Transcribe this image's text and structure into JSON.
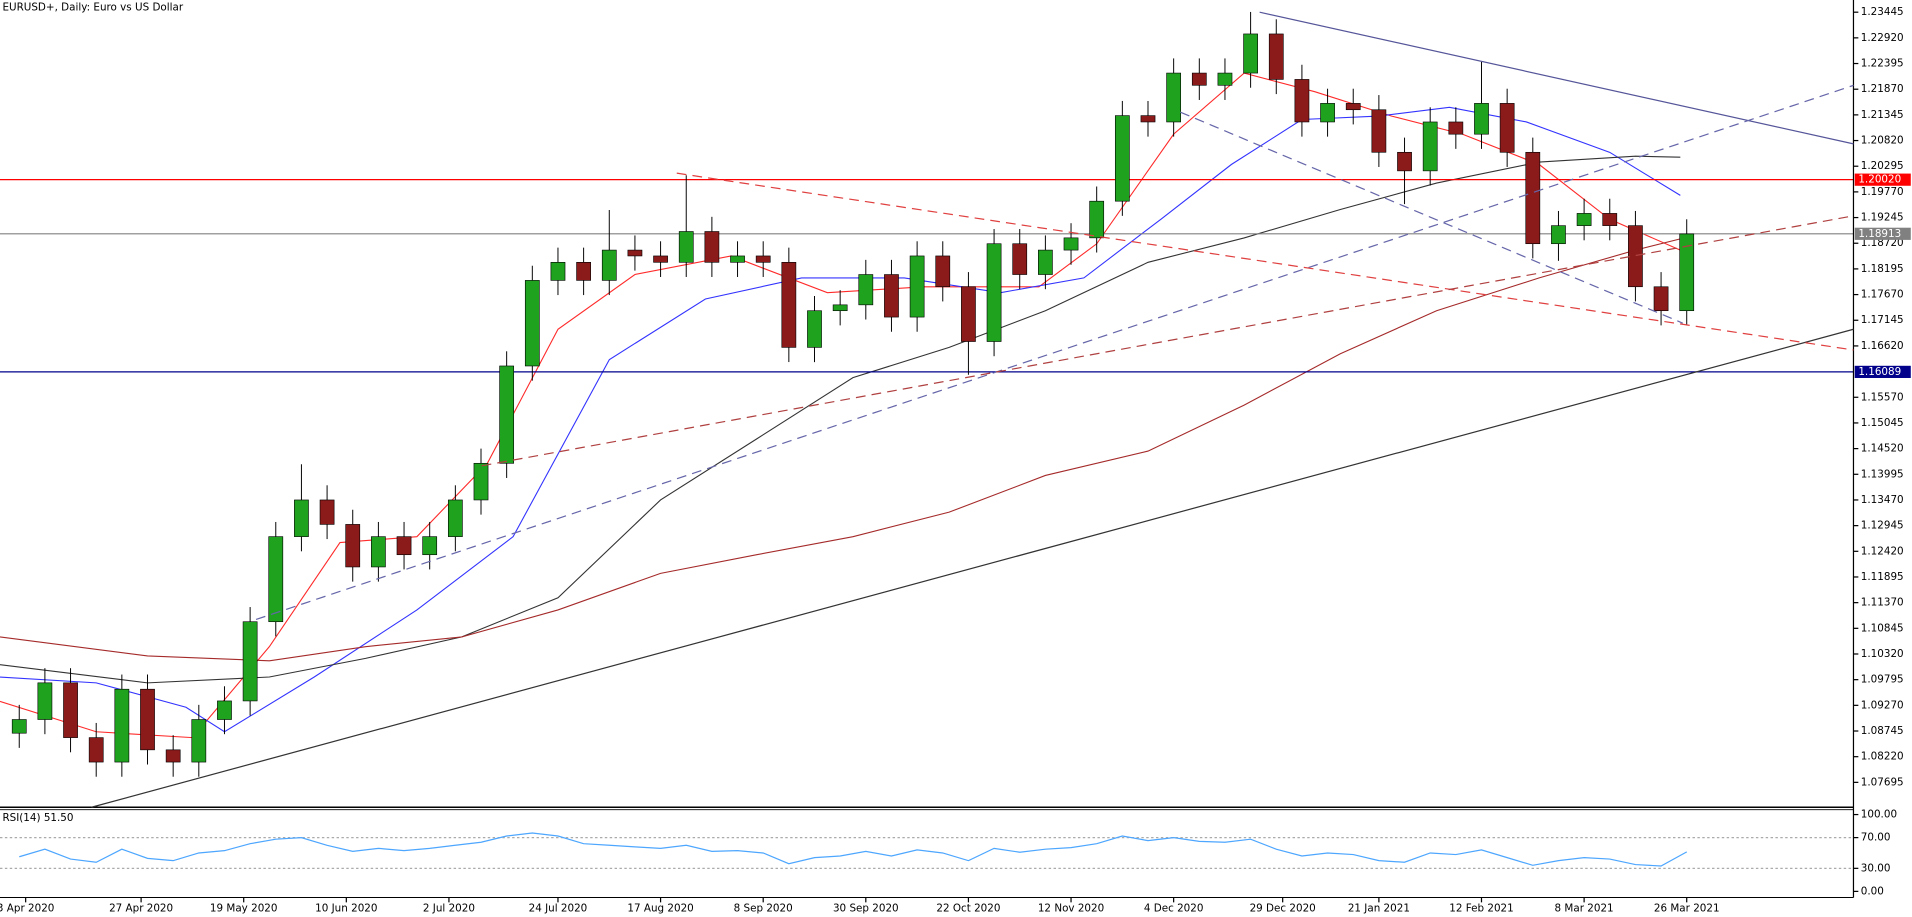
{
  "chart_data": {
    "type": "candlestick",
    "title": "EURUSD+, Daily:  Euro vs US Dollar",
    "bull_color": "#1fa31f",
    "bear_color": "#8b1a1a",
    "xlim": [
      0,
      289
    ],
    "ylim": [
      1.07186,
      1.23694
    ],
    "xticks": [
      {
        "value": 4,
        "label": "3 Apr 2020"
      },
      {
        "value": 22,
        "label": "27 Apr 2020"
      },
      {
        "value": 38,
        "label": "19 May 2020"
      },
      {
        "value": 54,
        "label": "10 Jun 2020"
      },
      {
        "value": 70,
        "label": "2 Jul 2020"
      },
      {
        "value": 87,
        "label": "24 Jul 2020"
      },
      {
        "value": 103,
        "label": "17 Aug 2020"
      },
      {
        "value": 119,
        "label": "8 Sep 2020"
      },
      {
        "value": 135,
        "label": "30 Sep 2020"
      },
      {
        "value": 151,
        "label": "22 Oct 2020"
      },
      {
        "value": 167,
        "label": "12 Nov 2020"
      },
      {
        "value": 183,
        "label": "4 Dec 2020"
      },
      {
        "value": 200,
        "label": "29 Dec 2020"
      },
      {
        "value": 215,
        "label": "21 Jan 2021"
      },
      {
        "value": 231,
        "label": "12 Feb 2021"
      },
      {
        "value": 247,
        "label": "8 Mar 2021"
      },
      {
        "value": 263,
        "label": "26 Mar 2021"
      }
    ],
    "yticks": [
      1.23445,
      {
        "value": 1.2292,
        "label": "1.22920"
      },
      1.22395,
      {
        "value": 1.2187,
        "label": "1.21870"
      },
      1.21345,
      {
        "value": 1.2082,
        "label": "1.20820"
      },
      1.20295,
      {
        "value": 1.1977,
        "label": "1.19770"
      },
      1.19245,
      {
        "value": 1.1872,
        "label": "1.18720"
      },
      1.18195,
      {
        "value": 1.1767,
        "label": "1.17670"
      },
      1.17145,
      {
        "value": 1.1662,
        "label": "1.16620"
      },
      {
        "value": 1.1557,
        "label": "1.15570"
      },
      1.15045,
      {
        "value": 1.1452,
        "label": "1.14520"
      },
      1.13995,
      {
        "value": 1.1347,
        "label": "1.13470"
      },
      1.12945,
      {
        "value": 1.1242,
        "label": "1.12420"
      },
      1.11895,
      {
        "value": 1.1137,
        "label": "1.11370"
      },
      1.10845,
      {
        "value": 1.1032,
        "label": "1.10320"
      },
      1.09795,
      {
        "value": 1.0927,
        "label": "1.09270"
      },
      1.08745,
      {
        "value": 1.0822,
        "label": "1.08220"
      },
      1.07695
    ],
    "x": [
      3,
      7,
      11,
      15,
      19,
      23,
      27,
      31,
      35,
      39,
      43,
      47,
      51,
      55,
      59,
      63,
      67,
      71,
      75,
      79,
      83,
      87,
      91,
      95,
      99,
      103,
      107,
      111,
      115,
      119,
      123,
      127,
      131,
      135,
      139,
      143,
      147,
      151,
      155,
      159,
      163,
      167,
      171,
      175,
      179,
      183,
      187,
      191,
      195,
      199,
      203,
      207,
      211,
      215,
      219,
      223,
      227,
      231,
      235,
      239,
      243,
      247,
      251,
      255,
      259,
      263
    ],
    "open": [
      1.087,
      1.0898,
      1.0973,
      1.0861,
      1.0811,
      1.096,
      1.0836,
      1.0811,
      1.0898,
      1.0936,
      1.1098,
      1.1272,
      1.1347,
      1.1297,
      1.121,
      1.1272,
      1.1235,
      1.1272,
      1.1347,
      1.1422,
      1.1621,
      1.1796,
      1.1833,
      1.1796,
      1.1858,
      1.1846,
      1.1833,
      1.1896,
      1.1833,
      1.1846,
      1.1833,
      1.1659,
      1.1734,
      1.1746,
      1.1808,
      1.1721,
      1.1846,
      1.1783,
      1.1671,
      1.1871,
      1.1808,
      1.1858,
      1.1883,
      1.1958,
      1.2133,
      1.212,
      1.222,
      1.2195,
      1.222,
      1.23,
      1.2207,
      1.212,
      1.2158,
      1.2145,
      1.2058,
      1.202,
      1.212,
      1.2095,
      1.2158,
      1.2058,
      1.1871,
      1.1908,
      1.1933,
      1.1908,
      1.1783,
      1.1734
    ],
    "high": [
      1.0928,
      1.1003,
      1.1003,
      1.0891,
      1.099,
      1.099,
      1.0866,
      1.0928,
      1.0966,
      1.1128,
      1.1302,
      1.142,
      1.1377,
      1.1327,
      1.1302,
      1.1302,
      1.1302,
      1.1377,
      1.1452,
      1.1651,
      1.1826,
      1.1863,
      1.1863,
      1.194,
      1.1888,
      1.1876,
      1.2011,
      1.1926,
      1.1876,
      1.1876,
      1.1863,
      1.1764,
      1.1776,
      1.1838,
      1.1838,
      1.1876,
      1.1876,
      1.1813,
      1.1901,
      1.1901,
      1.1888,
      1.1913,
      1.1988,
      1.2163,
      1.2163,
      1.225,
      1.225,
      1.225,
      1.2345,
      1.233,
      1.2237,
      1.2188,
      1.2188,
      1.2175,
      1.2088,
      1.215,
      1.215,
      1.2243,
      1.2188,
      1.2088,
      1.1938,
      1.1963,
      1.1963,
      1.1938,
      1.1813,
      1.1921
    ],
    "low": [
      1.084,
      1.0868,
      1.0831,
      1.0781,
      1.0781,
      1.0806,
      1.0781,
      1.0781,
      1.0868,
      1.0906,
      1.1068,
      1.1242,
      1.1267,
      1.118,
      1.118,
      1.1205,
      1.1205,
      1.1242,
      1.1317,
      1.1392,
      1.1591,
      1.1766,
      1.1766,
      1.1766,
      1.1816,
      1.1803,
      1.1803,
      1.1803,
      1.1803,
      1.1803,
      1.1629,
      1.1629,
      1.1704,
      1.1716,
      1.1691,
      1.1691,
      1.1753,
      1.1603,
      1.1641,
      1.1778,
      1.1778,
      1.1828,
      1.1853,
      1.1928,
      1.209,
      1.209,
      1.2165,
      1.2165,
      1.219,
      1.2177,
      1.209,
      1.209,
      1.2115,
      1.2028,
      1.1952,
      1.199,
      1.2065,
      1.2065,
      1.2028,
      1.1841,
      1.1836,
      1.1878,
      1.1878,
      1.1753,
      1.1704,
      1.1704
    ],
    "close": [
      1.0898,
      1.0973,
      1.0861,
      1.0811,
      1.096,
      1.0836,
      1.0811,
      1.0898,
      1.0936,
      1.1098,
      1.1272,
      1.1347,
      1.1297,
      1.121,
      1.1272,
      1.1235,
      1.1272,
      1.1347,
      1.1422,
      1.1621,
      1.1796,
      1.1833,
      1.1796,
      1.1858,
      1.1846,
      1.1833,
      1.1896,
      1.1833,
      1.1846,
      1.1833,
      1.1659,
      1.1734,
      1.1746,
      1.1808,
      1.1721,
      1.1846,
      1.1783,
      1.1671,
      1.1871,
      1.1808,
      1.1858,
      1.1883,
      1.1958,
      1.2133,
      1.212,
      1.222,
      1.2195,
      1.222,
      1.23,
      1.2207,
      1.212,
      1.2158,
      1.2145,
      1.2058,
      1.202,
      1.212,
      1.2095,
      1.2158,
      1.2058,
      1.1871,
      1.1908,
      1.1933,
      1.1908,
      1.1783,
      1.1734,
      1.1891
    ],
    "moving_averages": [
      {
        "color": "#ff2a2a",
        "x": [
          0,
          15,
          30,
          42,
          53,
          65,
          76,
          87,
          99,
          114,
          129,
          144,
          162,
          171,
          183,
          194,
          205,
          217,
          228,
          240,
          251,
          262
        ],
        "values": [
          1.0935,
          1.0873,
          1.0861,
          1.1047,
          1.126,
          1.1272,
          1.1422,
          1.1696,
          1.1808,
          1.1846,
          1.1771,
          1.1783,
          1.1783,
          1.1871,
          1.2095,
          1.222,
          1.2182,
          1.2132,
          1.2095,
          1.2033,
          1.1921,
          1.1858
        ]
      },
      {
        "color": "#3333ff",
        "x": [
          0,
          15,
          29,
          35,
          49,
          65,
          80,
          95,
          110,
          125,
          141,
          156,
          169,
          181,
          192,
          203,
          215,
          226,
          238,
          251,
          262
        ],
        "values": [
          1.0985,
          1.0973,
          1.0923,
          1.0873,
          1.0985,
          1.1122,
          1.1272,
          1.1634,
          1.1758,
          1.1801,
          1.1801,
          1.1771,
          1.1801,
          1.1921,
          1.2033,
          1.2125,
          1.2132,
          1.215,
          1.212,
          1.2058,
          1.197
        ]
      },
      {
        "color": "#333333",
        "x": [
          0,
          23,
          42,
          57,
          72,
          87,
          103,
          118,
          133,
          148,
          163,
          179,
          194,
          209,
          224,
          240,
          255,
          262
        ],
        "values": [
          1.101,
          1.0973,
          1.0985,
          1.1023,
          1.1067,
          1.1147,
          1.1347,
          1.1472,
          1.1597,
          1.1659,
          1.1734,
          1.1833,
          1.1883,
          1.1941,
          1.1995,
          1.2038,
          1.205,
          1.2048
        ]
      },
      {
        "color": "#a52a2a",
        "x": [
          0,
          23,
          42,
          57,
          72,
          87,
          103,
          118,
          133,
          148,
          163,
          179,
          194,
          209,
          224,
          240,
          255,
          262
        ],
        "values": [
          1.1067,
          1.1028,
          1.1018,
          1.1047,
          1.1067,
          1.1122,
          1.1197,
          1.1235,
          1.1272,
          1.1322,
          1.1397,
          1.1447,
          1.1541,
          1.1646,
          1.1734,
          1.1801,
          1.1858,
          1.1881
        ]
      }
    ],
    "levels": [
      {
        "value": 1.2002,
        "label": "1.20020"
      },
      1.16089,
      1.18913
    ],
    "level_colors": [
      "#ff0000",
      "#00008b",
      "#808080"
    ],
    "rsi": {
      "title": "RSI(14) 51.50",
      "color": "#4da6ff",
      "ylim": [
        0,
        100
      ],
      "yticks": [
        {
          "value": 100,
          "label": "100.00"
        },
        {
          "value": 70,
          "label": "70.00"
        },
        {
          "value": 30,
          "label": "30.00"
        },
        {
          "value": 0,
          "label": "0.00"
        }
      ],
      "values": [
        45,
        55,
        42,
        38,
        55,
        43,
        40,
        50,
        53,
        62,
        68,
        70,
        60,
        52,
        56,
        53,
        56,
        60,
        64,
        72,
        76,
        72,
        62,
        60,
        58,
        56,
        60,
        52,
        53,
        50,
        36,
        44,
        46,
        52,
        46,
        54,
        50,
        40,
        56,
        51,
        55,
        57,
        62,
        72,
        66,
        70,
        65,
        64,
        68,
        55,
        46,
        50,
        48,
        40,
        38,
        50,
        48,
        54,
        44,
        34,
        40,
        44,
        42,
        35,
        33,
        51.5
      ]
    }
  }
}
